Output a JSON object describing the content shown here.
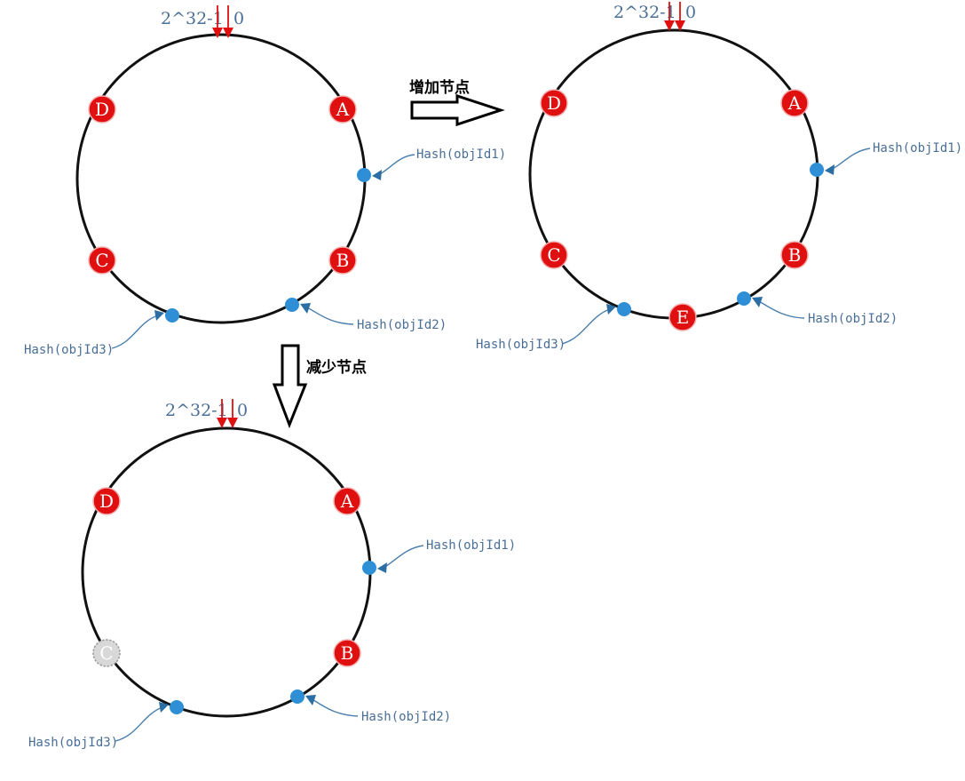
{
  "operations": {
    "add": "增加节点",
    "remove": "减少节点"
  },
  "diagrams": [
    {
      "id": "original",
      "top_label_left": "2^32-1",
      "top_label_right": "0",
      "nodes": [
        {
          "label": "A",
          "state": "active"
        },
        {
          "label": "B",
          "state": "active"
        },
        {
          "label": "C",
          "state": "active"
        },
        {
          "label": "D",
          "state": "active"
        }
      ],
      "objects": [
        "Hash(objId1)",
        "Hash(objId2)",
        "Hash(objId3)"
      ]
    },
    {
      "id": "added",
      "top_label_left": "2^32-1",
      "top_label_right": "0",
      "nodes": [
        {
          "label": "A",
          "state": "active"
        },
        {
          "label": "B",
          "state": "active"
        },
        {
          "label": "C",
          "state": "active"
        },
        {
          "label": "D",
          "state": "active"
        },
        {
          "label": "E",
          "state": "active"
        }
      ],
      "objects": [
        "Hash(objId1)",
        "Hash(objId2)",
        "Hash(objId3)"
      ]
    },
    {
      "id": "removed",
      "top_label_left": "2^32-1",
      "top_label_right": "0",
      "nodes": [
        {
          "label": "A",
          "state": "active"
        },
        {
          "label": "B",
          "state": "active"
        },
        {
          "label": "C",
          "state": "removed"
        },
        {
          "label": "D",
          "state": "active"
        }
      ],
      "objects": [
        "Hash(objId1)",
        "Hash(objId2)",
        "Hash(objId3)"
      ]
    }
  ],
  "colors": {
    "node": "#e01010",
    "removed_node": "#d8d8d8",
    "object_point": "#2e8fd6",
    "zero_arrow": "#e01010",
    "label_text": "#4a6f96"
  }
}
